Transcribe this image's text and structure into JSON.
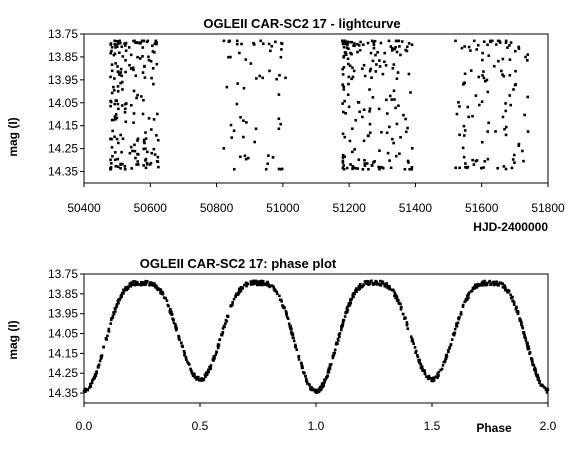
{
  "chart_data": [
    {
      "type": "scatter",
      "title": "OGLEII CAR-SC2 17 - lightcurve",
      "xlabel": "HJD-2400000",
      "ylabel": "mag (I)",
      "xlim": [
        50400,
        51800
      ],
      "ylim": [
        13.75,
        14.4
      ],
      "y_inverted": true,
      "x_ticks": [
        "50400",
        "50600",
        "50800",
        "51000",
        "51200",
        "51400",
        "51600",
        "51800"
      ],
      "y_ticks": [
        "13.75",
        "13.85",
        "13.95",
        "14.05",
        "14.15",
        "14.25",
        "14.35"
      ],
      "grid": false,
      "marker_color": "#000000",
      "observing_seasons": [
        {
          "x_range": [
            50480,
            50625
          ],
          "density": "dense"
        },
        {
          "x_range": [
            50820,
            51010
          ],
          "density": "sparse"
        },
        {
          "x_range": [
            51180,
            51400
          ],
          "density": "dense"
        },
        {
          "x_range": [
            51520,
            51740
          ],
          "density": "medium"
        }
      ],
      "mag_range": [
        13.78,
        14.34
      ]
    },
    {
      "type": "scatter",
      "title": "OGLEII CAR-SC2 17: phase plot",
      "xlabel": "Phase",
      "ylabel": "mag (I)",
      "xlim": [
        0.0,
        2.0
      ],
      "ylim": [
        13.75,
        14.4
      ],
      "y_inverted": true,
      "x_ticks": [
        "0.0",
        "0.5",
        "1.0",
        "1.5",
        "2.0"
      ],
      "y_ticks": [
        "13.75",
        "13.85",
        "13.95",
        "14.05",
        "14.15",
        "14.25",
        "14.35"
      ],
      "grid": false,
      "marker_color": "#000000",
      "maxima": [
        {
          "phase": 0.25,
          "mag": 13.79
        },
        {
          "phase": 0.75,
          "mag": 13.8
        },
        {
          "phase": 1.25,
          "mag": 13.79
        },
        {
          "phase": 1.75,
          "mag": 13.8
        }
      ],
      "minima": [
        {
          "phase": 0.0,
          "mag": 14.34
        },
        {
          "phase": 0.5,
          "mag": 14.28
        },
        {
          "phase": 1.0,
          "mag": 14.34
        },
        {
          "phase": 1.5,
          "mag": 14.28
        },
        {
          "phase": 2.0,
          "mag": 14.34
        }
      ]
    }
  ]
}
